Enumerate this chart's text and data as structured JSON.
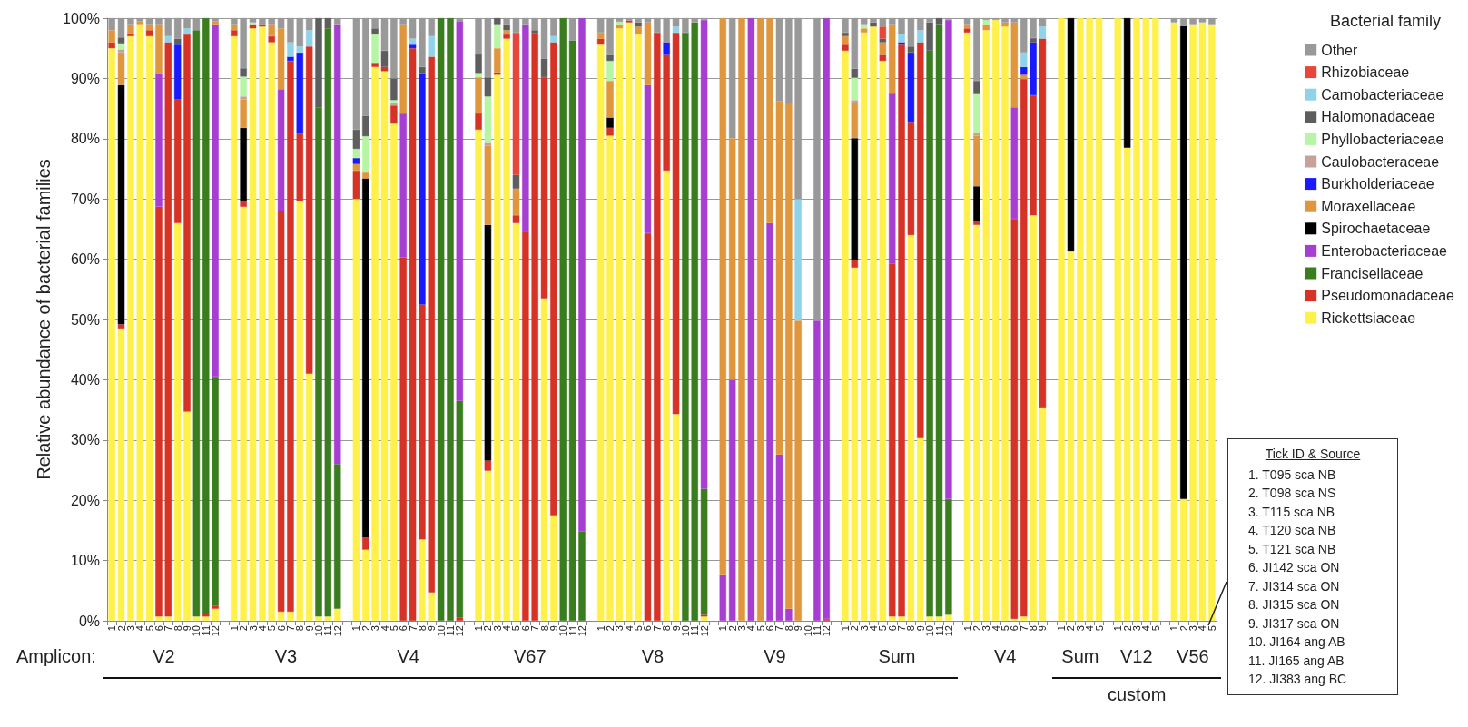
{
  "chart_data": {
    "type": "bar",
    "stacked": true,
    "ylabel": "Relative abundance of bacterial families",
    "legend_title": "Bacterial family",
    "legend": "right",
    "grid": "y",
    "ylim": [
      0,
      100
    ],
    "yticks": [
      {
        "value": 0,
        "label": "0%"
      },
      {
        "value": 10,
        "label": "10%"
      },
      {
        "value": 20,
        "label": "20%"
      },
      {
        "value": 30,
        "label": "30%"
      },
      {
        "value": 40,
        "label": "40%"
      },
      {
        "value": 50,
        "label": "50%"
      },
      {
        "value": 60,
        "label": "60%"
      },
      {
        "value": 70,
        "label": "70%"
      },
      {
        "value": 80,
        "label": "80%"
      },
      {
        "value": 90,
        "label": "90%"
      },
      {
        "value": 100,
        "label": "100%"
      }
    ],
    "categories": [
      "1",
      "2",
      "3",
      "4",
      "5",
      "6",
      "7",
      "8",
      "9",
      "10",
      "11",
      "12",
      null,
      "1",
      "2",
      "3",
      "4",
      "5",
      "6",
      "7",
      "8",
      "9",
      "10",
      "11",
      "12",
      null,
      "1",
      "2",
      "3",
      "4",
      "5",
      "6",
      "7",
      "8",
      "9",
      "10",
      "11",
      "12",
      null,
      "1",
      "2",
      "3",
      "4",
      "5",
      "6",
      "7",
      "8",
      "9",
      "10",
      "11",
      "12",
      null,
      "1",
      "2",
      "3",
      "4",
      "5",
      "6",
      "7",
      "8",
      "9",
      "10",
      "11",
      "12",
      null,
      "1",
      "2",
      "3",
      "4",
      "5",
      "6",
      "7",
      "8",
      "9",
      "10",
      "11",
      "12",
      null,
      "1",
      "2",
      "3",
      "4",
      "5",
      "6",
      "7",
      "8",
      "9",
      "10",
      "11",
      "12",
      null,
      "1",
      "2",
      "3",
      "4",
      "5",
      "6",
      "7",
      "8",
      "9",
      null,
      "1",
      "2",
      "3",
      "4",
      "5",
      null,
      "1",
      "2",
      "3",
      "4",
      "5",
      null,
      "1",
      "2",
      "3",
      "4",
      "5"
    ],
    "series": [
      {
        "name": "Rickettsiaceae",
        "color": "#fff04a",
        "values": [
          95,
          48.5,
          97,
          99,
          97,
          0.7,
          0.7,
          66,
          34.7,
          0.7,
          0.7,
          2,
          null,
          97,
          68.7,
          98.3,
          98.6,
          96,
          1.5,
          1.5,
          69.7,
          41,
          0.7,
          0.7,
          2,
          null,
          70,
          11.8,
          91.9,
          91.2,
          82.5,
          0,
          0,
          13.5,
          4.7,
          0,
          0,
          0,
          null,
          81.5,
          24.9,
          90.6,
          96.6,
          66,
          0,
          0,
          53.5,
          17.5,
          0,
          0,
          0,
          null,
          95.6,
          80.5,
          98.3,
          99.3,
          97.3,
          0,
          0,
          74.7,
          34.3,
          0,
          0,
          0.7,
          null,
          0,
          0,
          0,
          0,
          0,
          0,
          0,
          0,
          0,
          null,
          0,
          0,
          null,
          94.6,
          58.6,
          97.6,
          98.6,
          92.9,
          0.7,
          0.7,
          64,
          30.3,
          0.7,
          0.7,
          1,
          null,
          97.6,
          65.7,
          98,
          99.7,
          98.6,
          0.3,
          0.7,
          67.3,
          35.4,
          null,
          100,
          61.3,
          100,
          100,
          100,
          null,
          100,
          78.5,
          100,
          100,
          100,
          null,
          99.3,
          20.2,
          99,
          99.3,
          99
        ]
      },
      {
        "name": "Pseudomonadaceae",
        "color": "#d63226",
        "values": [
          1,
          0.7,
          0.5,
          0,
          1,
          68,
          95.3,
          20.5,
          62.6,
          0,
          0.4,
          0.5,
          null,
          1,
          1,
          0.7,
          0.4,
          1,
          66.5,
          91.4,
          11.1,
          54.3,
          0,
          0,
          0,
          null,
          4.7,
          2,
          0.7,
          0.7,
          3,
          60.3,
          95,
          39,
          88.9,
          0,
          0,
          0.5,
          null,
          2.7,
          1.7,
          0.4,
          0.7,
          1.3,
          64.6,
          97.5,
          36.7,
          78.5,
          0,
          0,
          0,
          null,
          1,
          1.3,
          0,
          0.3,
          0,
          64.3,
          97.6,
          19.2,
          63.3,
          0,
          0,
          0.3,
          null,
          0,
          0,
          0,
          0,
          0,
          0,
          0,
          0,
          0,
          null,
          0,
          0.3,
          null,
          1,
          1.3,
          0,
          0,
          1,
          58.6,
          94.9,
          18.8,
          65.7,
          0,
          0,
          0,
          null,
          0.7,
          0.6,
          0,
          0,
          0,
          66.4,
          89.2,
          19.9,
          61.2,
          null,
          0,
          0,
          0,
          0,
          0,
          null,
          0,
          0,
          0,
          0,
          0,
          null,
          0,
          0,
          0,
          0,
          0
        ]
      },
      {
        "name": "Francisellaceae",
        "color": "#3a7d1f",
        "values": [
          0,
          0,
          0,
          0,
          0,
          0,
          0,
          0,
          0,
          97.3,
          98.9,
          38,
          null,
          0,
          0,
          0,
          0,
          0,
          0,
          0,
          0,
          0,
          84.5,
          97.6,
          24,
          null,
          0,
          0,
          0,
          0,
          0,
          0,
          0,
          0,
          0,
          100,
          100,
          36,
          null,
          0,
          0,
          0,
          0,
          0,
          0,
          0,
          0,
          0,
          100,
          96.3,
          14.8,
          null,
          0,
          0,
          0,
          0,
          0,
          0,
          0,
          0,
          0,
          97.6,
          99.3,
          20.9,
          null,
          0,
          0,
          0,
          0,
          0,
          0,
          0,
          0,
          0,
          null,
          0,
          0,
          null,
          0,
          0,
          0,
          0,
          0,
          0,
          0,
          0,
          0,
          93.9,
          98.3,
          19.2,
          null,
          0,
          0,
          0,
          0,
          0,
          0,
          0,
          0,
          0,
          null,
          0,
          0,
          0,
          0,
          0,
          null,
          0,
          0,
          0,
          0,
          0,
          null,
          0,
          0,
          0,
          0,
          0
        ]
      },
      {
        "name": "Enterobacteriaceae",
        "color": "#a63fd1",
        "values": [
          0,
          0,
          0,
          0,
          0,
          22.2,
          0,
          0,
          0,
          0,
          0,
          58.5,
          null,
          0,
          0,
          0,
          0,
          0,
          20.2,
          0,
          0,
          0,
          0,
          0,
          73,
          null,
          0,
          0,
          0,
          0,
          0,
          23.9,
          0,
          0,
          0,
          0,
          0,
          63,
          null,
          0,
          0,
          0,
          0,
          0,
          34.4,
          0,
          0,
          0,
          0,
          0,
          85.2,
          null,
          0,
          0,
          0,
          0,
          0,
          24.6,
          0,
          0,
          0,
          0,
          0,
          77.8,
          null,
          7.7,
          40,
          0,
          100,
          0,
          66,
          27.6,
          2,
          0,
          null,
          49.8,
          99.7,
          null,
          0,
          0,
          0,
          0,
          0,
          28.2,
          0,
          0,
          0,
          0,
          0,
          79.5,
          null,
          0,
          0,
          0,
          0,
          0,
          18.5,
          0,
          0,
          0,
          null,
          0,
          0,
          0,
          0,
          0,
          null,
          0,
          0,
          0,
          0,
          0,
          null,
          0,
          0,
          0,
          0,
          0
        ]
      },
      {
        "name": "Spirochaetaceae",
        "color": "#000000",
        "values": [
          0,
          39.7,
          0,
          0,
          0,
          0,
          0,
          0,
          0,
          0,
          0,
          0,
          null,
          0,
          12.1,
          0,
          0,
          0,
          0,
          0,
          0,
          0,
          0,
          0,
          0,
          null,
          0,
          59.6,
          0,
          0,
          0,
          0,
          0,
          0,
          0,
          0,
          0,
          0,
          null,
          0,
          39.1,
          0,
          0,
          0,
          0,
          0,
          0,
          0,
          0,
          0,
          0,
          null,
          0,
          1.7,
          0,
          0,
          0,
          0,
          0,
          0,
          0,
          0,
          0,
          0,
          null,
          0,
          0,
          0,
          0,
          0,
          0,
          0,
          0,
          0,
          null,
          0,
          0,
          null,
          0,
          20.2,
          0,
          0,
          0,
          0,
          0,
          0,
          0,
          0,
          0,
          0,
          null,
          0,
          5.8,
          0,
          0,
          0,
          0,
          0,
          0,
          0,
          null,
          0,
          38.7,
          0,
          0,
          0,
          null,
          0,
          21.5,
          0,
          0,
          0,
          null,
          0,
          78.5,
          0,
          0,
          0
        ]
      },
      {
        "name": "Moraxellaceae",
        "color": "#e0963c",
        "values": [
          2,
          5.4,
          1.5,
          0.5,
          1,
          8.1,
          0,
          0,
          0,
          0,
          0,
          0.5,
          null,
          1,
          4.7,
          0,
          0,
          2,
          10.1,
          0,
          0,
          0,
          0,
          0,
          0,
          null,
          1.1,
          1,
          0,
          0,
          0,
          14.8,
          0,
          0,
          0,
          0,
          0,
          0,
          null,
          6,
          13.1,
          4,
          0.7,
          4.4,
          0,
          0,
          0,
          0,
          0,
          0,
          0,
          null,
          1,
          6.1,
          0.7,
          0,
          1.3,
          10.4,
          0,
          0,
          0,
          0,
          0,
          0,
          null,
          92.3,
          40.1,
          100,
          0,
          100,
          34,
          58.6,
          83.9,
          49.8,
          null,
          0,
          0,
          null,
          1.4,
          5.8,
          0.7,
          0,
          2.1,
          11.5,
          0,
          0,
          0,
          0,
          0,
          0,
          null,
          0.7,
          8.4,
          1,
          0,
          0.7,
          14.1,
          0.7,
          0,
          0,
          null,
          0,
          0,
          0,
          0,
          0,
          null,
          0,
          0,
          0,
          0,
          0,
          null,
          0,
          0,
          0,
          0,
          0
        ]
      },
      {
        "name": "Burkholderiaceae",
        "color": "#1a1aff",
        "values": [
          0,
          0,
          0,
          0,
          0,
          0,
          0,
          9.1,
          0,
          0,
          0,
          0,
          null,
          0,
          0,
          0,
          0,
          0,
          0,
          0.7,
          13.5,
          0,
          0,
          0,
          0,
          null,
          1,
          0,
          0,
          0,
          0,
          0,
          0.6,
          38.4,
          0,
          0,
          0,
          0,
          null,
          0,
          0,
          0,
          0,
          0,
          0,
          0,
          0,
          0,
          0,
          0,
          0,
          null,
          0,
          0,
          0,
          0,
          0,
          0,
          0,
          2.1,
          0,
          0,
          0,
          0,
          null,
          0,
          0,
          0,
          0,
          0,
          0,
          0,
          0,
          0,
          null,
          0,
          0,
          null,
          0,
          0,
          0,
          0,
          0,
          0,
          0.4,
          11.5,
          0,
          0,
          0,
          0,
          null,
          0,
          0,
          0,
          0,
          0,
          0,
          1.3,
          8.8,
          0,
          null,
          0,
          0,
          0,
          0,
          0,
          null,
          0,
          0,
          0,
          0,
          0,
          null,
          0,
          0,
          0,
          0,
          0
        ]
      },
      {
        "name": "Caulobacteraceae",
        "color": "#c8a09a",
        "values": [
          0,
          0.5,
          0,
          0,
          0,
          0,
          0,
          0,
          0,
          0,
          0,
          0,
          null,
          0,
          0.5,
          0,
          0,
          0,
          0,
          0,
          0,
          0,
          0,
          0,
          0,
          null,
          0,
          0,
          0,
          0,
          0.5,
          0,
          0,
          0,
          0,
          0,
          0,
          0,
          null,
          0,
          0.5,
          0,
          0,
          0,
          0,
          0,
          0,
          0,
          0,
          0,
          0,
          null,
          0,
          0,
          0,
          0,
          0,
          0,
          0,
          0,
          0,
          0,
          0,
          0,
          null,
          0,
          0,
          0,
          0,
          0,
          0,
          0,
          0,
          0,
          null,
          0,
          0,
          null,
          0,
          0.5,
          0,
          0,
          0,
          0,
          0,
          0,
          0,
          0,
          0,
          0,
          null,
          0,
          0.5,
          0,
          0,
          0,
          0,
          0,
          0,
          0,
          null,
          0,
          0,
          0,
          0,
          0,
          null,
          0,
          0,
          0,
          0,
          0,
          null,
          0,
          0,
          0,
          0,
          0
        ]
      },
      {
        "name": "Phyllobacteriaceae",
        "color": "#b6f5a3",
        "values": [
          0,
          1,
          0,
          0,
          0,
          0,
          0,
          0,
          0,
          0,
          0,
          0,
          null,
          0,
          3.3,
          0.3,
          0,
          0,
          0,
          0,
          0,
          0,
          0,
          0,
          0,
          null,
          1.5,
          6,
          4.7,
          0,
          0.4,
          0,
          0,
          0,
          0,
          0,
          0,
          0,
          null,
          0.7,
          7.7,
          4,
          0,
          0,
          0,
          0,
          0,
          0,
          0,
          0,
          0,
          null,
          0,
          3.3,
          0.4,
          0,
          0,
          0,
          0,
          0,
          0,
          0,
          0,
          0,
          null,
          0,
          0,
          0,
          0,
          0,
          0,
          0,
          0,
          0,
          null,
          0,
          0,
          null,
          0,
          3.7,
          0.7,
          0,
          0,
          0,
          0,
          0,
          0,
          0,
          0,
          0,
          null,
          0,
          6.4,
          0.7,
          0,
          0,
          0,
          0,
          0,
          0,
          null,
          0,
          0,
          0,
          0,
          0,
          null,
          0,
          0,
          0,
          0,
          0,
          null,
          0,
          0,
          0,
          0,
          0
        ]
      },
      {
        "name": "Halomonadaceae",
        "color": "#5e5e5e",
        "values": [
          0,
          1,
          0,
          0,
          0,
          0,
          0,
          1,
          0,
          0,
          0,
          0,
          null,
          0,
          1.4,
          0,
          0,
          0,
          0,
          0,
          0,
          0,
          14.8,
          1.7,
          0,
          null,
          3.2,
          3.4,
          1,
          2.7,
          3.6,
          0,
          0,
          1,
          0,
          0,
          0,
          0,
          null,
          3.1,
          3.2,
          1,
          1,
          2.3,
          0,
          0.5,
          3.1,
          0,
          0,
          0,
          0,
          null,
          0,
          1,
          0,
          0,
          0.7,
          0,
          0,
          0,
          0,
          0,
          0,
          0,
          null,
          0,
          0,
          0,
          0,
          0,
          0,
          0,
          0,
          0,
          null,
          0,
          0,
          null,
          0.6,
          1.5,
          0,
          0.7,
          0.6,
          0,
          0,
          1,
          0,
          4.7,
          1,
          0,
          null,
          0,
          2.2,
          0,
          0,
          0,
          0,
          0,
          0.7,
          0,
          null,
          0,
          0,
          0,
          0,
          0,
          null,
          0,
          0,
          0,
          0,
          0,
          null,
          0,
          0,
          0,
          0,
          0
        ]
      },
      {
        "name": "Carnobacteriaceae",
        "color": "#8fd3ea",
        "values": [
          0,
          0,
          0,
          0,
          0,
          0,
          1,
          0,
          1,
          0,
          0,
          0,
          null,
          0,
          0,
          0,
          0,
          0,
          0,
          2.4,
          1,
          2.7,
          0,
          0,
          0,
          null,
          0,
          0,
          0,
          0,
          0,
          0,
          1,
          0,
          3.4,
          0,
          0,
          0,
          null,
          0,
          0,
          0,
          0,
          0,
          0,
          0,
          0,
          1,
          0,
          0,
          0,
          null,
          0,
          0,
          0,
          0,
          0,
          0,
          0,
          0,
          1,
          0,
          0,
          0,
          null,
          0,
          0,
          0,
          0,
          0,
          0,
          0,
          0,
          20.2,
          null,
          0,
          0,
          null,
          0,
          0,
          0,
          0,
          0,
          0,
          1.3,
          0,
          2,
          0,
          0,
          0,
          null,
          0,
          0,
          0,
          0,
          0,
          0,
          2.4,
          0,
          2,
          null,
          0,
          0,
          0,
          0,
          0,
          null,
          0,
          0,
          0,
          0,
          0,
          null,
          0,
          0,
          0,
          0,
          0
        ]
      },
      {
        "name": "Rhizobiaceae",
        "color": "#e8463a",
        "values": [
          0,
          0,
          0,
          0,
          0,
          0,
          0,
          0,
          0,
          0,
          0,
          0,
          null,
          0,
          0,
          0,
          0,
          0,
          0,
          0,
          0,
          0,
          0,
          0,
          0,
          null,
          0,
          0,
          0,
          0,
          0,
          0,
          0,
          0,
          0,
          0,
          0,
          0,
          null,
          0,
          0,
          0,
          0,
          23.6,
          0,
          0,
          0,
          0,
          0,
          0,
          0,
          null,
          0,
          0,
          0,
          0,
          0,
          0,
          0,
          0,
          0,
          0,
          0,
          0,
          null,
          0,
          0,
          0,
          0,
          0,
          0,
          0,
          0,
          0,
          null,
          0,
          0,
          null,
          0,
          0,
          0,
          0,
          2,
          0,
          0,
          0,
          0,
          0,
          0,
          0,
          null,
          0,
          0,
          0,
          0,
          0,
          0,
          0,
          0,
          0,
          null,
          0,
          0,
          0,
          0,
          0,
          null,
          0,
          0,
          0,
          0,
          0,
          null,
          0,
          0,
          0,
          0,
          0
        ]
      },
      {
        "name": "Other",
        "color": "#999999",
        "values": [
          2,
          3.2,
          1,
          0.5,
          1,
          1,
          3,
          3.4,
          1.7,
          2,
          0,
          0.5,
          null,
          1,
          8.3,
          0.7,
          1,
          1,
          1.7,
          4,
          4.7,
          2,
          0,
          0,
          1,
          null,
          18.5,
          16.2,
          1.7,
          5.4,
          10,
          1,
          3.4,
          8.1,
          3,
          0,
          0,
          0.5,
          null,
          6,
          9.8,
          0,
          1,
          2.4,
          1,
          2,
          6.7,
          3,
          0,
          3.7,
          0,
          null,
          2.4,
          6.1,
          0.6,
          0.4,
          0.7,
          0.7,
          2.4,
          4,
          1.4,
          2.4,
          0.7,
          0.3,
          null,
          0,
          19.9,
          0,
          0,
          0,
          0,
          13.8,
          14.1,
          30,
          null,
          50.2,
          0,
          null,
          2.4,
          8.4,
          1,
          0.7,
          1.4,
          1,
          2.7,
          4.7,
          2,
          0.7,
          0,
          0.3,
          null,
          1,
          10.4,
          0.3,
          0.3,
          0.7,
          0.7,
          5.7,
          3.3,
          1.4,
          null,
          0,
          0,
          0,
          0,
          0,
          null,
          0,
          0,
          0,
          0,
          0,
          null,
          0.7,
          1.3,
          1,
          0.7,
          1
        ]
      }
    ],
    "annotations": [
      "Amplicon:",
      "V2",
      "V3",
      "V4",
      "V67",
      "V8",
      "V9",
      "Sum",
      "V4",
      "Sum",
      "V12",
      "V56",
      "custom",
      "Tick ID & Source",
      "1.  T095 sca NB",
      "2.  T098 sca NS",
      "3.  T115 sca NB",
      "4.  T120 sca NB",
      "5.  T121 sca NB",
      "6.  JI142 sca ON",
      "7.  JI314 sca ON",
      "8.  JI315 sca ON",
      "9.  JI317 sca ON",
      "10. JI164 ang AB",
      "11. JI165 ang AB",
      "12. JI383 ang BC"
    ]
  }
}
